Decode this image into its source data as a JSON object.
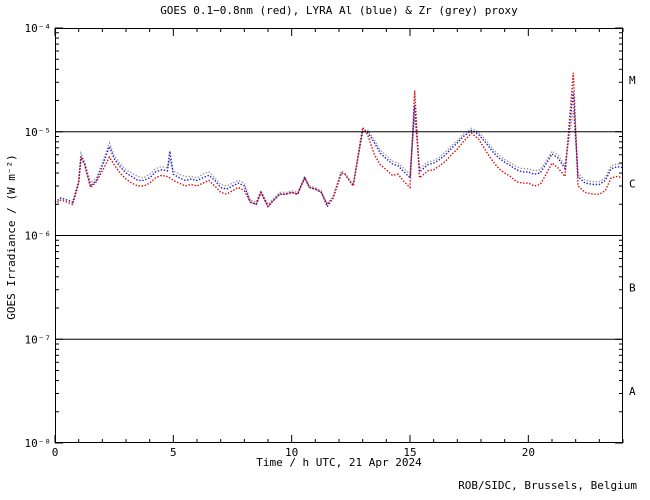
{
  "chart_data": {
    "type": "scatter",
    "title": "GOES 0.1−0.8nm (red), LYRA Al (blue) & Zr (grey) proxy",
    "xlabel": "Time / h UTC, 21 Apr 2024",
    "ylabel": "GOES Irradiance / (W m⁻²)",
    "footer": "ROB/SIDC, Brussels, Belgium",
    "x_range": [
      0,
      24
    ],
    "y_range_log10": [
      -8,
      -4
    ],
    "x_major_ticks": [
      0,
      5,
      10,
      15,
      20
    ],
    "x_major_labels": [
      "0",
      "5",
      "10",
      "15",
      "20"
    ],
    "x_minor_step": 1,
    "y_decades": [
      -4,
      -5,
      -6,
      -7,
      -8
    ],
    "y_decade_labels": [
      "10⁻⁴",
      "10⁻⁵",
      "10⁻⁶",
      "10⁻⁷",
      "10⁻⁸"
    ],
    "hlines_log10": [
      -5,
      -6,
      -7
    ],
    "flare_classes": [
      {
        "label": "M",
        "log10_mid": -4.5
      },
      {
        "label": "C",
        "log10_mid": -5.5
      },
      {
        "label": "B",
        "log10_mid": -6.5
      },
      {
        "label": "A",
        "log10_mid": -7.5
      }
    ],
    "legend": "in-title",
    "grid": false,
    "colors": {
      "red": "#dd0000",
      "blue": "#1a1acd",
      "grey": "#9a9a9a",
      "axis": "#000000",
      "background": "#ffffff"
    },
    "x": [
      0,
      0.25,
      0.5,
      0.75,
      1.0,
      1.1,
      1.25,
      1.5,
      1.75,
      2.0,
      2.3,
      2.5,
      2.75,
      3.0,
      3.25,
      3.5,
      3.75,
      4.0,
      4.25,
      4.5,
      4.75,
      4.85,
      5.0,
      5.25,
      5.5,
      5.75,
      6.0,
      6.25,
      6.5,
      6.75,
      7.0,
      7.25,
      7.5,
      7.75,
      8.0,
      8.25,
      8.5,
      8.7,
      9.0,
      9.25,
      9.5,
      9.75,
      10.0,
      10.25,
      10.55,
      10.75,
      11.0,
      11.25,
      11.5,
      11.75,
      12.1,
      12.25,
      12.6,
      12.9,
      13.0,
      13.2,
      13.5,
      13.75,
      14.0,
      14.25,
      14.5,
      14.75,
      15.0,
      15.2,
      15.4,
      15.75,
      16.0,
      16.25,
      16.5,
      16.75,
      17.0,
      17.25,
      17.6,
      17.9,
      18.25,
      18.5,
      18.75,
      19.0,
      19.25,
      19.5,
      19.75,
      20.0,
      20.25,
      20.5,
      20.75,
      21.0,
      21.25,
      21.55,
      21.9,
      22.1,
      22.4,
      22.75,
      23.0,
      23.25,
      23.5,
      23.75,
      24.0
    ],
    "series": [
      {
        "name": "GOES 0.1−0.8nm (red)",
        "color_key": "red",
        "values": [
          2e-06,
          2.2e-06,
          2.1e-06,
          2e-06,
          3.2e-06,
          5.6e-06,
          4.8e-06,
          2.9e-06,
          3.3e-06,
          4.2e-06,
          5.7e-06,
          4.8e-06,
          4e-06,
          3.5e-06,
          3.2e-06,
          3e-06,
          3e-06,
          3.2e-06,
          3.6e-06,
          3.8e-06,
          3.7e-06,
          3.6e-06,
          3.4e-06,
          3.2e-06,
          3e-06,
          3.1e-06,
          3e-06,
          3.2e-06,
          3.4e-06,
          3e-06,
          2.6e-06,
          2.5e-06,
          2.7e-06,
          2.9e-06,
          2.7e-06,
          2.1e-06,
          2e-06,
          2.6e-06,
          1.9e-06,
          2.2e-06,
          2.5e-06,
          2.5e-06,
          2.6e-06,
          2.5e-06,
          3.6e-06,
          2.9e-06,
          2.8e-06,
          2.6e-06,
          2e-06,
          2.3e-06,
          4e-06,
          3.9e-06,
          3e-06,
          8e-06,
          1.1e-05,
          9.5e-06,
          6e-06,
          4.8e-06,
          4.3e-06,
          3.8e-06,
          3.9e-06,
          3.3e-06,
          2.9e-06,
          2.5e-05,
          3.6e-06,
          4.2e-06,
          4.3e-06,
          4.7e-06,
          5.2e-06,
          6e-06,
          6.8e-06,
          8e-06,
          9.7e-06,
          8.5e-06,
          6.3e-06,
          5.2e-06,
          4.4e-06,
          4e-06,
          3.7e-06,
          3.3e-06,
          3.2e-06,
          3.2e-06,
          3e-06,
          3.1e-06,
          3.9e-06,
          5e-06,
          4.5e-06,
          3.7e-06,
          3.7e-05,
          3e-06,
          2.6e-06,
          2.5e-06,
          2.5e-06,
          2.7e-06,
          3.6e-06,
          3.7e-06,
          3.6e-06
        ]
      },
      {
        "name": "LYRA Al (blue)",
        "color_key": "blue",
        "values": [
          2.1e-06,
          2.3e-06,
          2.2e-06,
          2.1e-06,
          3.3e-06,
          5.8e-06,
          4.9e-06,
          3e-06,
          3.4e-06,
          4.7e-06,
          7.2e-06,
          5.5e-06,
          4.6e-06,
          4e-06,
          3.7e-06,
          3.4e-06,
          3.4e-06,
          3.6e-06,
          4.1e-06,
          4.3e-06,
          4.2e-06,
          6.5e-06,
          3.9e-06,
          3.6e-06,
          3.4e-06,
          3.5e-06,
          3.4e-06,
          3.6e-06,
          3.8e-06,
          3.4e-06,
          2.9e-06,
          2.8e-06,
          3e-06,
          3.2e-06,
          3e-06,
          2.1e-06,
          2e-06,
          2.6e-06,
          1.9e-06,
          2.2e-06,
          2.5e-06,
          2.5e-06,
          2.6e-06,
          2.5e-06,
          3.6e-06,
          2.9e-06,
          2.8e-06,
          2.6e-06,
          1.9e-06,
          2.3e-06,
          4e-06,
          3.9e-06,
          3e-06,
          7.5e-06,
          1e-05,
          1e-05,
          7.8e-06,
          6.2e-06,
          5.5e-06,
          4.9e-06,
          4.7e-06,
          4.1e-06,
          3.6e-06,
          1.8e-05,
          4.1e-06,
          4.8e-06,
          5e-06,
          5.4e-06,
          6e-06,
          6.9e-06,
          7.8e-06,
          9e-06,
          1.03e-05,
          9.4e-06,
          7.6e-06,
          6.4e-06,
          5.6e-06,
          5.1e-06,
          4.7e-06,
          4.3e-06,
          4.1e-06,
          4.1e-06,
          3.9e-06,
          4e-06,
          4.9e-06,
          6.1e-06,
          5.6e-06,
          4.4e-06,
          2.4e-05,
          3.7e-06,
          3.2e-06,
          3.1e-06,
          3.1e-06,
          3.4e-06,
          4.4e-06,
          4.6e-06,
          4.5e-06
        ]
      },
      {
        "name": "Zr (grey) proxy",
        "color_key": "grey",
        "values": [
          2.1e-06,
          2.3e-06,
          2.2e-06,
          2.1e-06,
          3.4e-06,
          6.2e-06,
          5.2e-06,
          3.2e-06,
          3.6e-06,
          5e-06,
          7.8e-06,
          5.9e-06,
          4.9e-06,
          4.3e-06,
          4e-06,
          3.7e-06,
          3.6e-06,
          3.9e-06,
          4.4e-06,
          4.6e-06,
          4.5e-06,
          5.5e-06,
          4.2e-06,
          3.9e-06,
          3.7e-06,
          3.7e-06,
          3.6e-06,
          3.9e-06,
          4.1e-06,
          3.6e-06,
          3.1e-06,
          3e-06,
          3.2e-06,
          3.4e-06,
          3.2e-06,
          2.2e-06,
          2.1e-06,
          2.7e-06,
          2e-06,
          2.3e-06,
          2.6e-06,
          2.6e-06,
          2.7e-06,
          2.6e-06,
          3.7e-06,
          3e-06,
          2.9e-06,
          2.7e-06,
          2e-06,
          2.4e-06,
          4.2e-06,
          4e-06,
          3.1e-06,
          7.8e-06,
          1.03e-05,
          1.05e-05,
          8.3e-06,
          6.6e-06,
          5.9e-06,
          5.2e-06,
          5e-06,
          4.4e-06,
          3.9e-06,
          1.4e-05,
          4.4e-06,
          5.1e-06,
          5.3e-06,
          5.7e-06,
          6.4e-06,
          7.3e-06,
          8.2e-06,
          9.5e-06,
          1.08e-05,
          9.9e-06,
          8.1e-06,
          6.8e-06,
          6e-06,
          5.4e-06,
          5e-06,
          4.6e-06,
          4.4e-06,
          4.4e-06,
          4.2e-06,
          4.3e-06,
          5.2e-06,
          6.5e-06,
          6e-06,
          4.7e-06,
          1.6e-05,
          4e-06,
          3.4e-06,
          3.3e-06,
          3.3e-06,
          3.6e-06,
          4.7e-06,
          4.9e-06,
          4.8e-06
        ]
      }
    ]
  }
}
